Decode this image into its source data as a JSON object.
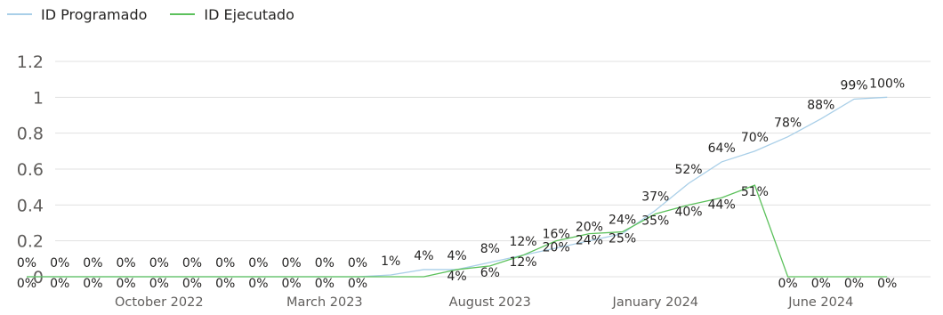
{
  "legend": {
    "items": [
      {
        "label": "ID Programado",
        "color": "#a9cfe8"
      },
      {
        "label": "ID Ejecutado",
        "color": "#5cc15c"
      }
    ]
  },
  "chart_data": {
    "type": "line",
    "ylim": [
      0,
      1.2
    ],
    "y_ticks": [
      "0",
      "0.2",
      "0.4",
      "0.6",
      "0.8",
      "1",
      "1.2"
    ],
    "x_ticks": [
      "October 2022",
      "March 2023",
      "August 2023",
      "January 2024",
      "June 2024"
    ],
    "grid": true,
    "legend_position": "top-left",
    "x": [
      "2022-06",
      "2022-07",
      "2022-08",
      "2022-09",
      "2022-10",
      "2022-11",
      "2022-12",
      "2023-01",
      "2023-02",
      "2023-03",
      "2023-04",
      "2023-05",
      "2023-06",
      "2023-07",
      "2023-08",
      "2023-09",
      "2023-10",
      "2023-11",
      "2023-12",
      "2024-01",
      "2024-02",
      "2024-03",
      "2024-04",
      "2024-05",
      "2024-06",
      "2024-07",
      "2024-08"
    ],
    "series": [
      {
        "name": "ID Programado",
        "color": "#a9cfe8",
        "values": [
          0,
          0,
          0,
          0,
          0,
          0,
          0,
          0,
          0,
          0,
          0,
          0.01,
          0.04,
          0.04,
          0.08,
          0.12,
          0.16,
          0.2,
          0.24,
          0.37,
          0.52,
          0.64,
          0.7,
          0.78,
          0.88,
          0.99,
          1.0
        ],
        "labels": [
          "0%",
          "0%",
          "0%",
          "0%",
          "0%",
          "0%",
          "0%",
          "0%",
          "0%",
          "0%",
          "0%",
          "1%",
          "4%",
          "4%",
          "8%",
          "12%",
          "16%",
          "20%",
          "24%",
          "37%",
          "52%",
          "64%",
          "70%",
          "78%",
          "88%",
          "99%",
          "100%"
        ]
      },
      {
        "name": "ID Ejecutado",
        "color": "#5cc15c",
        "values": [
          0,
          0,
          0,
          0,
          0,
          0,
          0,
          0,
          0,
          0,
          0,
          0,
          0,
          0.04,
          0.06,
          0.12,
          0.2,
          0.24,
          0.25,
          0.35,
          0.4,
          0.44,
          0.51,
          0,
          0,
          0,
          0
        ],
        "labels": [
          "0%",
          "0%",
          "0%",
          "0%",
          "0%",
          "0%",
          "0%",
          "0%",
          "0%",
          "0%",
          "0%",
          "",
          "",
          "4%",
          "6%",
          "12%",
          "20%",
          "24%",
          "25%",
          "35%",
          "40%",
          "44%",
          "51%",
          "0%",
          "0%",
          "0%",
          "0%"
        ]
      }
    ]
  }
}
